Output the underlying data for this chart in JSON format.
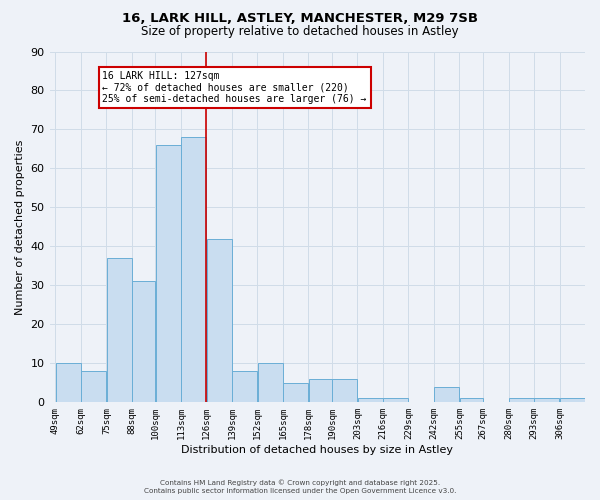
{
  "title1": "16, LARK HILL, ASTLEY, MANCHESTER, M29 7SB",
  "title2": "Size of property relative to detached houses in Astley",
  "xlabel": "Distribution of detached houses by size in Astley",
  "ylabel": "Number of detached properties",
  "bin_labels": [
    "49sqm",
    "62sqm",
    "75sqm",
    "88sqm",
    "100sqm",
    "113sqm",
    "126sqm",
    "139sqm",
    "152sqm",
    "165sqm",
    "178sqm",
    "190sqm",
    "203sqm",
    "216sqm",
    "229sqm",
    "242sqm",
    "255sqm",
    "267sqm",
    "280sqm",
    "293sqm",
    "306sqm"
  ],
  "bar_values": [
    10,
    8,
    37,
    31,
    66,
    68,
    42,
    8,
    10,
    5,
    6,
    6,
    1,
    1,
    0,
    4,
    1,
    0,
    1,
    1,
    1
  ],
  "bar_color": "#c9ddf0",
  "bar_edge_color": "#6aaed6",
  "vline_x": 126,
  "bin_edges": [
    49,
    62,
    75,
    88,
    100,
    113,
    126,
    139,
    152,
    165,
    178,
    190,
    203,
    216,
    229,
    242,
    255,
    267,
    280,
    293,
    306,
    319
  ],
  "ylim": [
    0,
    90
  ],
  "yticks": [
    0,
    10,
    20,
    30,
    40,
    50,
    60,
    70,
    80,
    90
  ],
  "annotation_title": "16 LARK HILL: 127sqm",
  "annotation_line1": "← 72% of detached houses are smaller (220)",
  "annotation_line2": "25% of semi-detached houses are larger (76) →",
  "annotation_box_color": "#ffffff",
  "annotation_box_edge": "#cc0000",
  "vline_color": "#cc0000",
  "grid_color": "#d0dce8",
  "bg_color": "#eef2f8",
  "footer1": "Contains HM Land Registry data © Crown copyright and database right 2025.",
  "footer2": "Contains public sector information licensed under the Open Government Licence v3.0."
}
